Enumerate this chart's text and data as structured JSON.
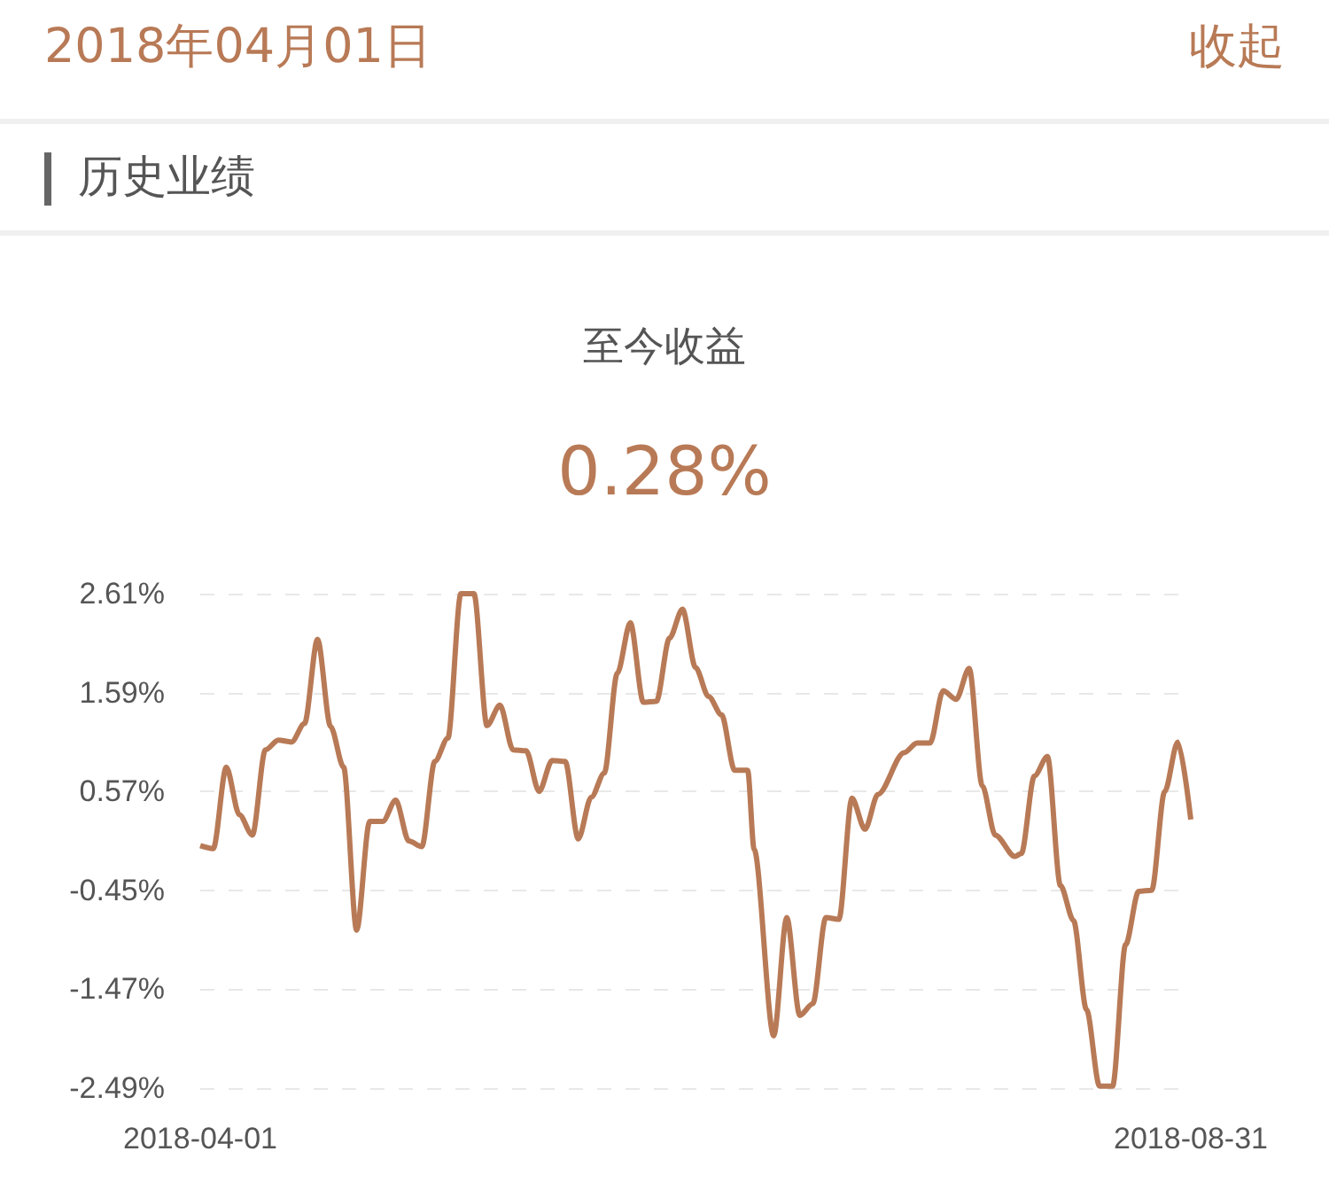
{
  "chart_data": {
    "type": "line",
    "title": "至今收益",
    "subtitle": "0.28%",
    "annotations": [
      "2018年04月01日",
      "收起",
      "历史业绩"
    ],
    "x": [
      "2018-04-01",
      "2018-04-03",
      "2018-04-05",
      "2018-04-07",
      "2018-04-09",
      "2018-04-11",
      "2018-04-13",
      "2018-04-15",
      "2018-04-17",
      "2018-04-19",
      "2018-04-21",
      "2018-04-23",
      "2018-04-25",
      "2018-04-27",
      "2018-04-29",
      "2018-05-01",
      "2018-05-03",
      "2018-05-05",
      "2018-05-07",
      "2018-05-09",
      "2018-05-11",
      "2018-05-13",
      "2018-05-15",
      "2018-05-17",
      "2018-05-19",
      "2018-05-21",
      "2018-05-23",
      "2018-05-25",
      "2018-05-27",
      "2018-05-29",
      "2018-05-31",
      "2018-06-02",
      "2018-06-04",
      "2018-06-06",
      "2018-06-08",
      "2018-06-10",
      "2018-06-12",
      "2018-06-14",
      "2018-06-16",
      "2018-06-18",
      "2018-06-20",
      "2018-06-22",
      "2018-06-24",
      "2018-06-25",
      "2018-06-28",
      "2018-06-30",
      "2018-07-02",
      "2018-07-04",
      "2018-07-06",
      "2018-07-08",
      "2018-07-10",
      "2018-07-12",
      "2018-07-14",
      "2018-07-18",
      "2018-07-20",
      "2018-07-22",
      "2018-07-24",
      "2018-07-26",
      "2018-07-28",
      "2018-07-30",
      "2018-08-01",
      "2018-08-04",
      "2018-08-05",
      "2018-08-07",
      "2018-08-09",
      "2018-08-11",
      "2018-08-13",
      "2018-08-15",
      "2018-08-17",
      "2018-08-19",
      "2018-08-21",
      "2018-08-23",
      "2018-08-25",
      "2018-08-27",
      "2018-08-29",
      "2018-08-31"
    ],
    "series": [
      {
        "color": "#b87a56",
        "values": [
          0.01,
          -0.02,
          0.82,
          0.33,
          0.12,
          1.0,
          1.1,
          1.08,
          1.27,
          2.14,
          1.24,
          0.82,
          -0.86,
          0.26,
          0.26,
          0.48,
          0.06,
          0.0,
          0.88,
          1.12,
          2.61,
          2.61,
          1.25,
          1.46,
          1.0,
          0.99,
          0.57,
          0.89,
          0.88,
          0.08,
          0.51,
          0.76,
          1.79,
          2.31,
          1.49,
          1.5,
          2.15,
          2.45,
          1.85,
          1.55,
          1.36,
          0.79,
          0.79,
          -0.03,
          -1.95,
          -0.73,
          -1.74,
          -1.62,
          -0.73,
          -0.75,
          0.5,
          0.18,
          0.54,
          0.97,
          1.07,
          1.07,
          1.61,
          1.52,
          1.84,
          0.63,
          0.12,
          -0.1,
          -0.07,
          0.73,
          0.93,
          -0.4,
          -0.76,
          -1.68,
          -2.47,
          -2.47,
          -1.01,
          -0.46,
          -0.45,
          0.57,
          1.08,
          0.28
        ]
      }
    ],
    "xlim": [
      "2018-04-01",
      "2018-08-31"
    ],
    "xticks": [
      "2018-04-01",
      "2018-08-31"
    ],
    "ylim": [
      -2.49,
      2.61
    ],
    "yticks": [
      {
        "value": -2.49,
        "label": "-2.49%"
      },
      {
        "value": -1.47,
        "label": "-1.47%"
      },
      {
        "value": -0.45,
        "label": "-0.45%"
      },
      {
        "value": 0.57,
        "label": "0.57%"
      },
      {
        "value": 1.59,
        "label": "1.59%"
      },
      {
        "value": 2.61,
        "label": "2.61%"
      }
    ],
    "grid": "y",
    "marker": "none",
    "line_style": "solid"
  }
}
